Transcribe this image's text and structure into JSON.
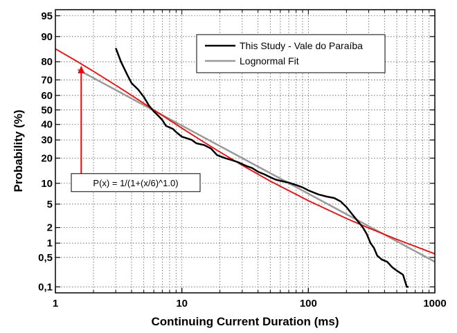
{
  "chart_data": {
    "type": "line",
    "xlabel": "Continuing Current Duration (ms)",
    "ylabel": "Probability (%)",
    "xscale": "log",
    "yscale": "probability",
    "xlim": [
      1,
      1000
    ],
    "ylim": [
      0.07,
      96
    ],
    "grid": true,
    "legend_position": "top-right",
    "x_ticks": [
      1,
      10,
      100,
      1000
    ],
    "x_tick_labels": [
      "1",
      "10",
      "100",
      "1000"
    ],
    "y_ticks": [
      0.1,
      0.5,
      1,
      2,
      5,
      10,
      20,
      30,
      40,
      50,
      60,
      70,
      80,
      90,
      95
    ],
    "y_tick_labels": [
      "0,1",
      "0,5",
      "1",
      "2",
      "5",
      "10",
      "20",
      "30",
      "40",
      "50",
      "60",
      "70",
      "80",
      "90",
      "95"
    ],
    "series": [
      {
        "name": "This Study - Vale do Paraíba",
        "color": "#000000",
        "x": [
          3,
          3.3,
          3.7,
          4,
          4.5,
          5,
          5.5,
          6,
          6.5,
          7,
          7.5,
          8,
          8.5,
          9,
          10,
          11,
          12,
          13,
          15,
          17,
          19,
          22,
          25,
          28,
          32,
          36,
          40,
          45,
          50,
          55,
          60,
          70,
          80,
          90,
          100,
          120,
          140,
          160,
          180,
          200,
          220,
          250,
          270,
          290,
          310,
          330,
          350,
          380,
          420,
          460,
          500,
          560,
          600,
          620
        ],
        "y": [
          86,
          80,
          73,
          68,
          64,
          59,
          53,
          49,
          46,
          43,
          39,
          38,
          37,
          35,
          32,
          31,
          30,
          28,
          27,
          25,
          21.5,
          20,
          19,
          18,
          16.5,
          15.5,
          14,
          13,
          12,
          11.2,
          10.8,
          10.2,
          9.5,
          8.8,
          8,
          7,
          6.5,
          6.2,
          5.5,
          4.5,
          3.5,
          2.5,
          2,
          1.5,
          1,
          0.8,
          0.55,
          0.45,
          0.4,
          0.3,
          0.25,
          0.2,
          0.1,
          0.1
        ]
      },
      {
        "name": "Lognormal Fit",
        "color": "#999999",
        "x": [
          1.5,
          1000
        ],
        "y": [
          76,
          0.4
        ]
      },
      {
        "name": "",
        "color": "#ff0000",
        "x": [
          1,
          1.5,
          2,
          3,
          4,
          6,
          8,
          10,
          15,
          20,
          30,
          50,
          100,
          200,
          300,
          500,
          1000
        ],
        "y": [
          85.7,
          80,
          75,
          66.7,
          60,
          50,
          42.9,
          37.5,
          28.6,
          23.1,
          16.7,
          10.7,
          5.66,
          2.9,
          1.96,
          1.19,
          0.6
        ]
      }
    ],
    "annotations": [
      {
        "text": "P(x) = 1/(1+(x/6)^1.0)",
        "arrow_x": 1.6,
        "arrow_from_y": 10,
        "arrow_to_y": 78
      }
    ],
    "colors": {
      "grid": "#555555",
      "annotation_arrow": "#ff0000"
    }
  }
}
